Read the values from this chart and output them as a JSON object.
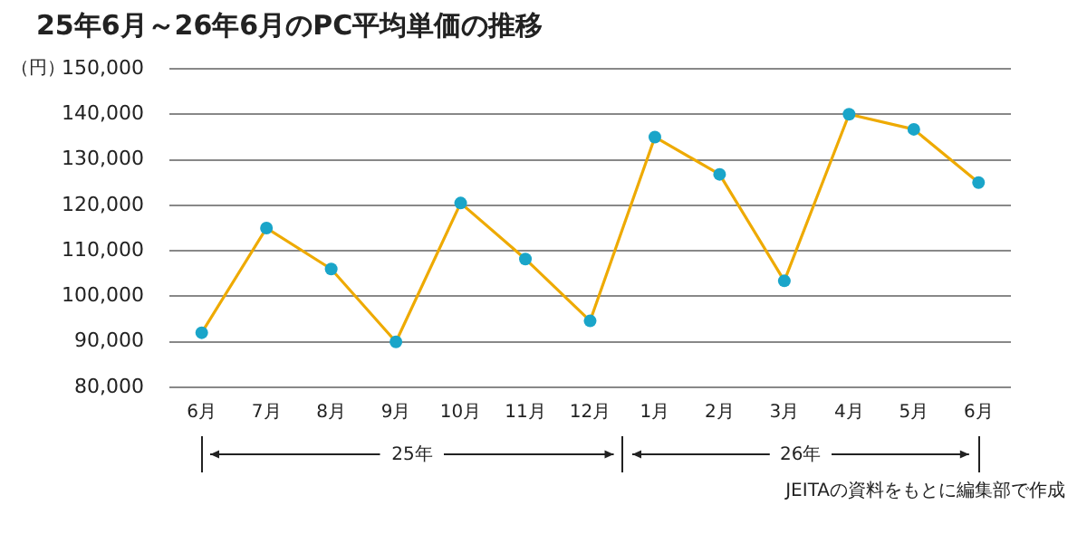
{
  "chart_data": {
    "type": "line",
    "title": "25年6月～26年6月のPC平均単価の推移",
    "ylabel": "（円）",
    "categories": [
      "6月",
      "7月",
      "8月",
      "9月",
      "10月",
      "11月",
      "12月",
      "1月",
      "2月",
      "3月",
      "4月",
      "5月",
      "6月"
    ],
    "series": [
      {
        "color": "#eeaa00",
        "colors": [
          "#1aa5c9",
          "#1aa5c9",
          "#1aa5c9",
          "#1aa5c9",
          "#1aa5c9",
          "#1aa5c9",
          "#1aa5c9",
          "#1aa5c9",
          "#1aa5c9",
          "#1aa5c9",
          "#1aa5c9",
          "#1aa5c9",
          "#1aa5c9"
        ],
        "values": [
          92000,
          115000,
          106000,
          90000,
          120500,
          108200,
          94600,
          135000,
          126800,
          103400,
          140000,
          136700,
          125000
        ]
      }
    ],
    "ylim": [
      80000,
      150000
    ],
    "yticks": [
      {
        "value": 80000,
        "label": "80,000"
      },
      {
        "value": 90000,
        "label": "90,000"
      },
      {
        "value": 100000,
        "label": "100,000"
      },
      {
        "value": 110000,
        "label": "110,000"
      },
      {
        "value": 120000,
        "label": "120,000"
      },
      {
        "value": 130000,
        "label": "130,000"
      },
      {
        "value": 140000,
        "label": "140,000"
      },
      {
        "value": 150000,
        "label": "150,000"
      }
    ],
    "grid": "y",
    "marker": "circle",
    "line_style": "solid",
    "annotations": [
      "25年",
      "26年",
      "JEITAの資料をもとに編集部で作成"
    ]
  }
}
